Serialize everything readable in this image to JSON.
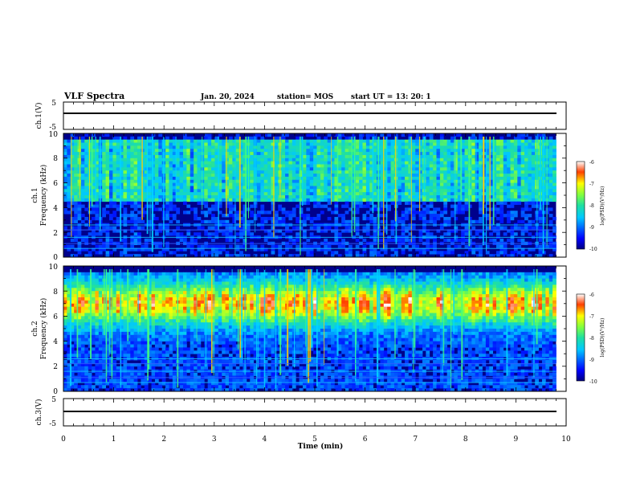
{
  "header": {
    "title": "VLF Spectra",
    "date": "Jan. 20, 2024",
    "station": "station= MOS",
    "start": "start  UT  =   13: 20: 1"
  },
  "chart_data": [
    {
      "type": "line",
      "panel": "ch1-waveform",
      "ylabel": "ch.1(V)",
      "ylim": [
        -5,
        5
      ],
      "yticks": [
        "5",
        "-5"
      ],
      "series": [
        {
          "values": [
            0,
            0
          ]
        }
      ],
      "x": [
        0,
        9.8
      ]
    },
    {
      "type": "heatmap",
      "panel": "ch1-spectrogram",
      "ylabel": "ch.1\nFrequency (kHz)",
      "ylabel_ch": "ch.1",
      "ylabel_freq": "Frequency (kHz)",
      "ylim": [
        0,
        10
      ],
      "yticks": [
        "0",
        "2",
        "4",
        "6",
        "8",
        "10"
      ],
      "data_xrange": [
        0,
        9.8
      ],
      "colorbar": {
        "label": "log(PSD)(V²/Hz)",
        "range": [
          -10,
          -6
        ],
        "ticks": [
          "-6",
          "-7",
          "-8",
          "-9",
          "-10"
        ]
      },
      "intensity_profile": "broadband"
    },
    {
      "type": "heatmap",
      "panel": "ch2-spectrogram",
      "ylabel": "ch.2\nFrequency (kHz)",
      "ylabel_ch": "ch.2",
      "ylabel_freq": "Frequency (kHz)",
      "ylim": [
        0,
        10
      ],
      "yticks": [
        "0",
        "2",
        "4",
        "6",
        "8",
        "10"
      ],
      "data_xrange": [
        0,
        9.8
      ],
      "colorbar": {
        "label": "log(PSD)(V²/Hz)",
        "range": [
          -10,
          -6
        ],
        "ticks": [
          "-6",
          "-7",
          "-8",
          "-9",
          "-10"
        ]
      },
      "intensity_profile": "peak ~7 kHz"
    },
    {
      "type": "line",
      "panel": "ch3-waveform",
      "ylabel": "ch.3(V)",
      "ylim": [
        -5,
        5
      ],
      "yticks": [
        "5",
        "-5"
      ],
      "series": [
        {
          "values": [
            0,
            0
          ]
        }
      ],
      "x": [
        0,
        9.8
      ]
    }
  ],
  "xaxis": {
    "label": "Time (min)",
    "range": [
      0,
      10
    ],
    "ticks": [
      "0",
      "1",
      "2",
      "3",
      "4",
      "5",
      "6",
      "7",
      "8",
      "9",
      "10"
    ]
  }
}
